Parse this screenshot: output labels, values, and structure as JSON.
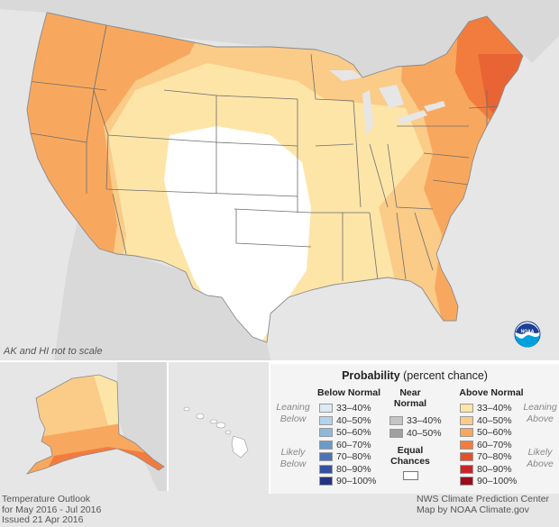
{
  "map_note": "AK and HI not to scale",
  "legend": {
    "title_bold": "Probability",
    "title_rest": " (percent chance)",
    "below": {
      "heading": "Below Normal",
      "side_upper": [
        "Leaning",
        "Below"
      ],
      "side_lower": [
        "Likely",
        "Below"
      ],
      "items": [
        {
          "label": "33–40%",
          "color": "#dbeaf6"
        },
        {
          "label": "40–50%",
          "color": "#b4d2ea"
        },
        {
          "label": "50–60%",
          "color": "#8db9dc"
        },
        {
          "label": "60–70%",
          "color": "#6c9ac9"
        },
        {
          "label": "70–80%",
          "color": "#4d73b4"
        },
        {
          "label": "80–90%",
          "color": "#35509e"
        },
        {
          "label": "90–100%",
          "color": "#263384"
        }
      ]
    },
    "near": {
      "heading_line1": "Near",
      "heading_line2": "Normal",
      "items": [
        {
          "label": "33–40%",
          "color": "#c4c4c4"
        },
        {
          "label": "40–50%",
          "color": "#a0a0a0"
        }
      ],
      "equal_line1": "Equal",
      "equal_line2": "Chances",
      "equal_color": "#ffffff"
    },
    "above": {
      "heading": "Above Normal",
      "side_upper": [
        "Leaning",
        "Above"
      ],
      "side_lower": [
        "Likely",
        "Above"
      ],
      "items": [
        {
          "label": "33–40%",
          "color": "#fde5a8"
        },
        {
          "label": "40–50%",
          "color": "#fbcb88"
        },
        {
          "label": "50–60%",
          "color": "#f8a85e"
        },
        {
          "label": "60–70%",
          "color": "#f27c3e"
        },
        {
          "label": "70–80%",
          "color": "#e2502d"
        },
        {
          "label": "80–90%",
          "color": "#c8252a"
        },
        {
          "label": "90–100%",
          "color": "#9c0d1c"
        }
      ]
    }
  },
  "footer_left": [
    "Temperature Outlook",
    "for May 2016 - Jul 2016",
    "Issued 21 Apr 2016"
  ],
  "footer_right": [
    "NWS Climate Prediction Center",
    "Map by NOAA Climate.gov"
  ],
  "logo_text": "NOAA",
  "colors": {
    "land_outside": "#d9d9d9",
    "water": "#e6e6e6",
    "equal_chances": "#ffffff",
    "state_lines": "#6d6d6d"
  }
}
